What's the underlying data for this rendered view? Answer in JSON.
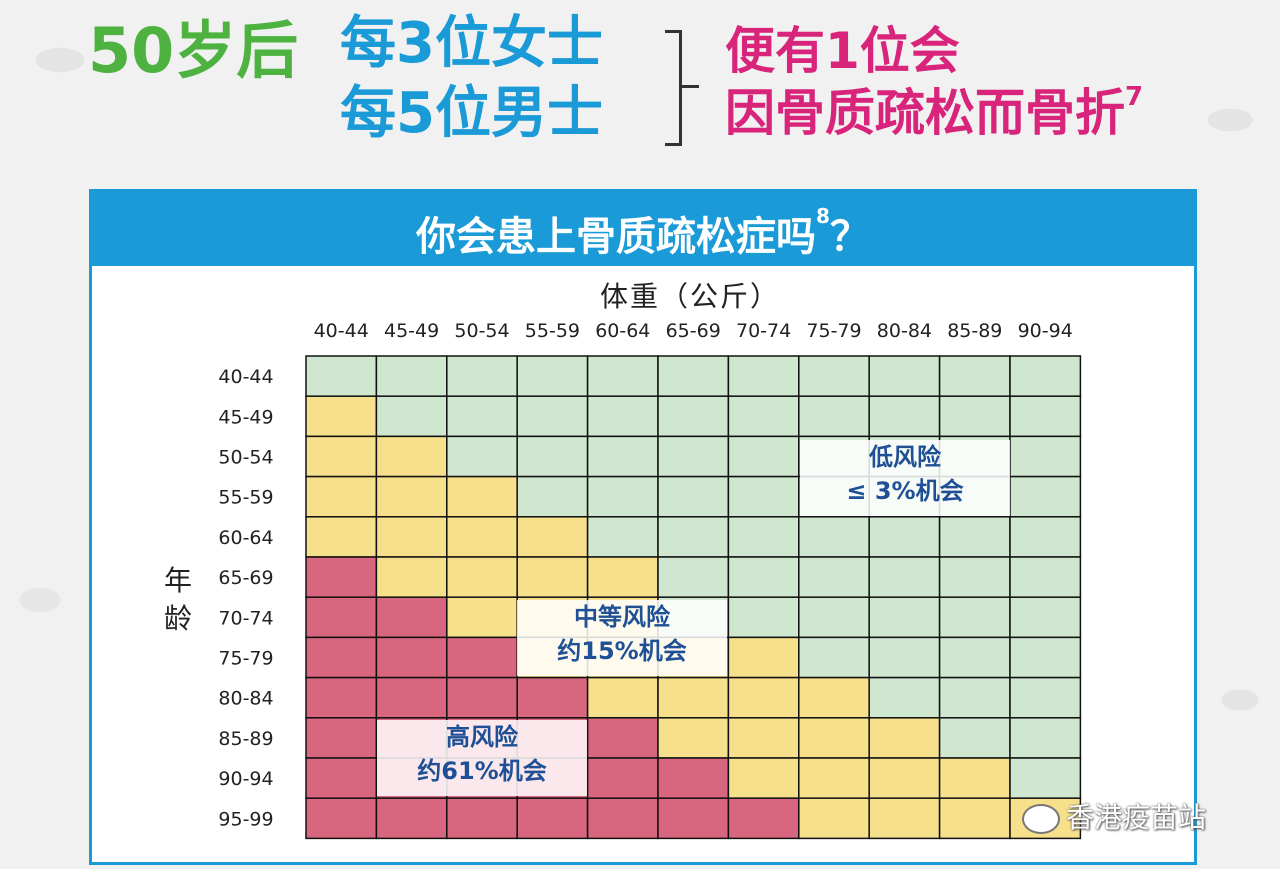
{
  "header": {
    "age_text": "50岁后",
    "women_text": "每3位女士",
    "men_text": "每5位男士",
    "one_text": "便有1位会",
    "fracture_text": "因骨质疏松而骨折",
    "fracture_ref": "7"
  },
  "panel": {
    "title": "你会患上骨质疏松症吗",
    "title_ref": "8",
    "title_suffix": "？"
  },
  "chart_data": {
    "type": "heatmap",
    "title": "你会患上骨质疏松症吗",
    "xlabel": "体重（公斤）",
    "ylabel": "年龄",
    "x_categories": [
      "40-44",
      "45-49",
      "50-54",
      "55-59",
      "60-64",
      "65-69",
      "70-74",
      "75-79",
      "80-84",
      "85-89",
      "90-94"
    ],
    "y_categories": [
      "40-44",
      "45-49",
      "50-54",
      "55-59",
      "60-64",
      "65-69",
      "70-74",
      "75-79",
      "80-84",
      "85-89",
      "90-94",
      "95-99"
    ],
    "levels": {
      "L": {
        "name": "低风险",
        "desc": "≤ 3%机会",
        "color": "#cfe6cf"
      },
      "M": {
        "name": "中等风险",
        "desc": "约15%机会",
        "color": "#f7e08c"
      },
      "H": {
        "name": "高风险",
        "desc": "约61%机会",
        "color": "#d9667f"
      }
    },
    "grid": [
      [
        "L",
        "L",
        "L",
        "L",
        "L",
        "L",
        "L",
        "L",
        "L",
        "L",
        "L"
      ],
      [
        "M",
        "L",
        "L",
        "L",
        "L",
        "L",
        "L",
        "L",
        "L",
        "L",
        "L"
      ],
      [
        "M",
        "M",
        "L",
        "L",
        "L",
        "L",
        "L",
        "L",
        "L",
        "L",
        "L"
      ],
      [
        "M",
        "M",
        "M",
        "L",
        "L",
        "L",
        "L",
        "L",
        "L",
        "L",
        "L"
      ],
      [
        "M",
        "M",
        "M",
        "M",
        "L",
        "L",
        "L",
        "L",
        "L",
        "L",
        "L"
      ],
      [
        "H",
        "M",
        "M",
        "M",
        "M",
        "L",
        "L",
        "L",
        "L",
        "L",
        "L"
      ],
      [
        "H",
        "H",
        "M",
        "M",
        "M",
        "L",
        "L",
        "L",
        "L",
        "L",
        "L"
      ],
      [
        "H",
        "H",
        "H",
        "M",
        "M",
        "M",
        "M",
        "L",
        "L",
        "L",
        "L"
      ],
      [
        "H",
        "H",
        "H",
        "H",
        "M",
        "M",
        "M",
        "M",
        "L",
        "L",
        "L"
      ],
      [
        "H",
        "H",
        "H",
        "H",
        "H",
        "M",
        "M",
        "M",
        "M",
        "L",
        "L"
      ],
      [
        "H",
        "H",
        "H",
        "H",
        "H",
        "H",
        "M",
        "M",
        "M",
        "M",
        "L"
      ],
      [
        "H",
        "H",
        "H",
        "H",
        "H",
        "H",
        "H",
        "M",
        "M",
        "M",
        "M"
      ]
    ]
  },
  "watermark": "香港疫苗站"
}
